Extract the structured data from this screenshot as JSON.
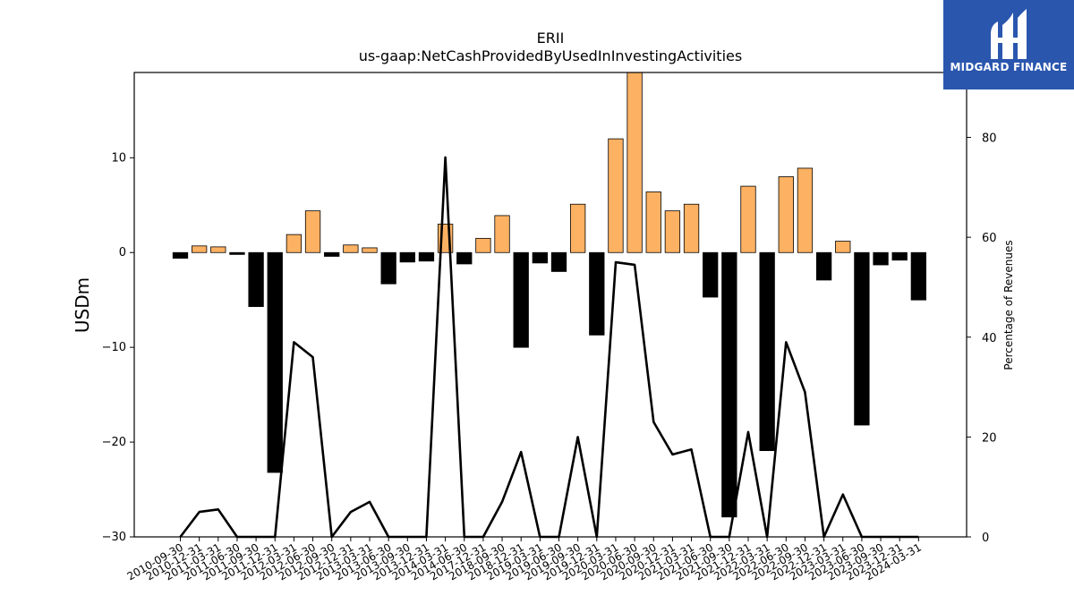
{
  "chart_data": {
    "type": "bar",
    "title": "ERII",
    "subtitle": "us-gaap:NetCashProvidedByUsedInInvestingActivities",
    "ylabel": "USDm",
    "y2label": "Percentage of Revenues",
    "ylim": [
      -30,
      19
    ],
    "y2lim": [
      0,
      93
    ],
    "yticks": [
      -30,
      -20,
      -10,
      0,
      10
    ],
    "y2ticks": [
      0,
      20,
      40,
      60,
      80
    ],
    "categories": [
      "2010-09-30",
      "2010-12-31",
      "2011-03-31",
      "2011-06-30",
      "2011-09-30",
      "2011-12-31",
      "2012-03-31",
      "2012-06-30",
      "2012-09-30",
      "2012-12-31",
      "2013-03-31",
      "2013-06-30",
      "2013-09-30",
      "2013-12-31",
      "2014-03-31",
      "2014-06-30",
      "2017-12-31",
      "2018-09-30",
      "2018-12-31",
      "2019-03-31",
      "2019-06-30",
      "2019-09-30",
      "2019-12-31",
      "2020-03-31",
      "2020-06-30",
      "2020-09-30",
      "2020-12-31",
      "2021-03-31",
      "2021-06-30",
      "2021-09-30",
      "2021-12-31",
      "2022-03-31",
      "2022-06-30",
      "2022-09-30",
      "2022-12-31",
      "2023-03-31",
      "2023-06-30",
      "2023-09-30",
      "2023-12-31",
      "2024-03-31"
    ],
    "series": [
      {
        "name": "",
        "values": [
          -0.6,
          0.7,
          0.6,
          -0.2,
          -5.7,
          -23.2,
          1.9,
          4.4,
          -0.4,
          0.8,
          0.5,
          -3.3,
          -1.0,
          -0.9,
          3.0,
          -1.2,
          1.5,
          3.9,
          -10.0,
          -1.1,
          -2.0,
          5.1,
          -8.7,
          12.0,
          19.5,
          6.4,
          4.4,
          5.1,
          -4.7,
          -27.9,
          7.0,
          -20.9,
          8.0,
          8.9,
          -2.9,
          1.2,
          -18.2,
          -1.3,
          -0.8,
          -5.0
        ]
      },
      {
        "name": "",
        "values": [
          0,
          5,
          5.5,
          0,
          0,
          0,
          39,
          36,
          0,
          5,
          7,
          0,
          0,
          0,
          76,
          0,
          0,
          7,
          17,
          0,
          0,
          20,
          0,
          55,
          54.5,
          23,
          16.5,
          17.5,
          0,
          0,
          21,
          0,
          39,
          29,
          0,
          8.5,
          0,
          0,
          0,
          0
        ]
      }
    ],
    "colors": {
      "positive": "#fdb162",
      "negative": "#000000",
      "line": "#000000"
    },
    "legend": "none",
    "grid": false
  },
  "logo": {
    "text": "MIDGARD FINANCE"
  }
}
